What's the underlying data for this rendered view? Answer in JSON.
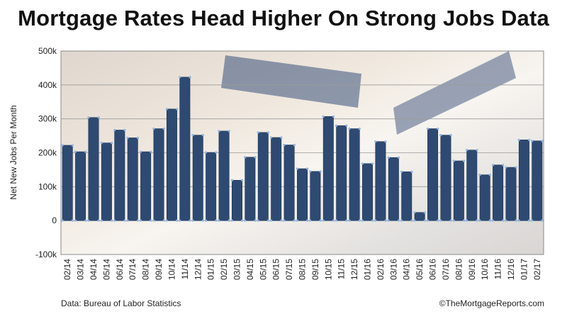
{
  "title": "Mortgage Rates Head Higher On Strong Jobs Data",
  "source": "Data: Bureau of Labor Statistics",
  "credit": "©TheMortgageReports.com",
  "colors": {
    "bar": "#2e4a72",
    "bar_edge": "#1c3150",
    "marker": "#8fb4e0",
    "grid": "#9a9a9a",
    "background_photo_tone": "#d9c7b0"
  },
  "chart_data": {
    "type": "bar",
    "title": "Mortgage Rates Head Higher On Strong Jobs Data",
    "xlabel": "",
    "ylabel": "Net New Jobs Per Month",
    "ylim": [
      -100000,
      500000
    ],
    "yticks": [
      -100000,
      0,
      100000,
      200000,
      300000,
      400000,
      500000
    ],
    "ytick_labels": [
      "-100k",
      "0",
      "100k",
      "200k",
      "300k",
      "400k",
      "500k"
    ],
    "grid": true,
    "categories": [
      "02/14",
      "03/14",
      "04/14",
      "05/14",
      "06/14",
      "07/14",
      "08/14",
      "09/14",
      "10/14",
      "11/14",
      "12/14",
      "01/15",
      "02/15",
      "03/15",
      "04/15",
      "05/15",
      "06/15",
      "07/15",
      "08/15",
      "09/15",
      "10/15",
      "11/15",
      "12/15",
      "01/16",
      "02/16",
      "03/16",
      "04/16",
      "05/16",
      "06/16",
      "07/16",
      "08/16",
      "09/16",
      "10/16",
      "11/16",
      "12/16",
      "01/17",
      "02/17"
    ],
    "values": [
      222000,
      203000,
      304000,
      229000,
      267000,
      244000,
      203000,
      271000,
      329000,
      423000,
      252000,
      201000,
      264000,
      119000,
      187000,
      260000,
      245000,
      223000,
      153000,
      145000,
      307000,
      280000,
      271000,
      168000,
      233000,
      186000,
      144000,
      24000,
      271000,
      252000,
      176000,
      208000,
      135000,
      164000,
      157000,
      238000,
      235000
    ]
  }
}
